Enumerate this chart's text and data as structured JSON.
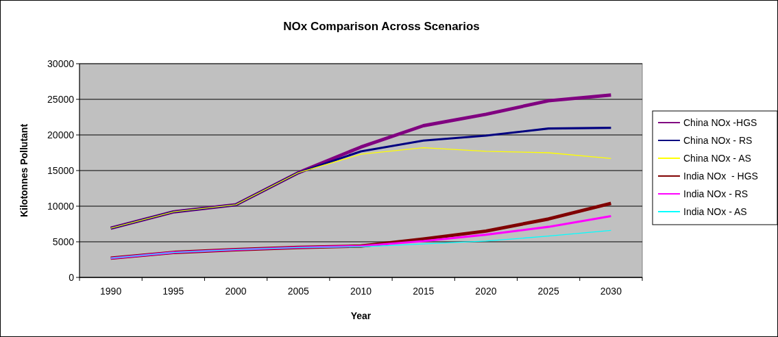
{
  "chart_data": {
    "type": "line",
    "title": "NOx Comparison Across Scenarios",
    "xlabel": "Year",
    "ylabel": "Kilotonnes Pollutant",
    "categories": [
      "1990",
      "1995",
      "2000",
      "2005",
      "2010",
      "2015",
      "2020",
      "2025",
      "2030"
    ],
    "series": [
      {
        "name": "China NOx -HGS",
        "color": "#800080",
        "values": [
          6900,
          9200,
          10200,
          14700,
          18300,
          21300,
          22900,
          24800,
          25600
        ]
      },
      {
        "name": "China NOx - RS",
        "color": "#000080",
        "values": [
          6900,
          9200,
          10200,
          14700,
          17700,
          19200,
          19900,
          20900,
          21000
        ]
      },
      {
        "name": "China NOx - AS",
        "color": "#ffff00",
        "values": [
          6900,
          9200,
          10200,
          14700,
          17300,
          18200,
          17700,
          17500,
          16700
        ]
      },
      {
        "name": "India NOx  - HGS",
        "color": "#800000",
        "values": [
          2700,
          3500,
          3900,
          4200,
          4400,
          5400,
          6500,
          8200,
          10400
        ]
      },
      {
        "name": "India NOx - RS",
        "color": "#ff00ff",
        "values": [
          2700,
          3500,
          3900,
          4200,
          4400,
          5100,
          6000,
          7100,
          8600
        ]
      },
      {
        "name": "India NOx - AS",
        "color": "#00ffff",
        "values": [
          2700,
          3500,
          3900,
          4200,
          4300,
          4700,
          5100,
          5800,
          6600
        ]
      }
    ],
    "ylim": [
      0,
      30000
    ],
    "yticks": [
      0,
      5000,
      10000,
      15000,
      20000,
      25000,
      30000
    ],
    "grid": "y",
    "legend": "right",
    "marker": "none",
    "line_style": "solid"
  }
}
